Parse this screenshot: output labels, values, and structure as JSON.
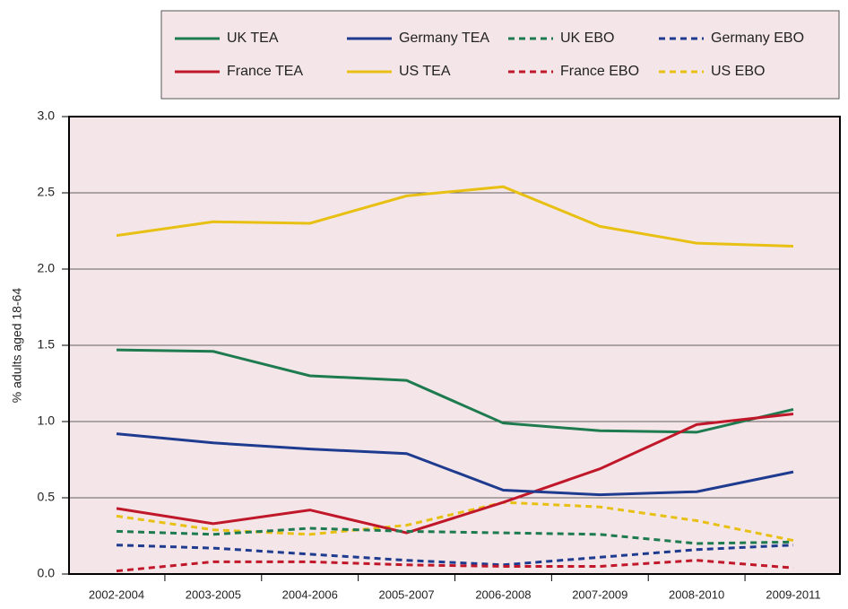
{
  "chart_data": {
    "type": "line",
    "y_label": "% adults aged 18-64",
    "categories": [
      "2002-2004",
      "2003-2005",
      "2004-2006",
      "2005-2007",
      "2006-2008",
      "2007-2009",
      "2008-2010",
      "2009-2011"
    ],
    "ylim": [
      0,
      3
    ],
    "yticks": [
      {
        "value": 0,
        "label": "0.0"
      },
      0.5,
      {
        "value": 1,
        "label": "1.0"
      },
      1.5,
      {
        "value": 2,
        "label": "2.0"
      },
      2.5,
      {
        "value": 3,
        "label": "3.0"
      }
    ],
    "grid": true,
    "legend": "top",
    "series": [
      {
        "name": "UK TEA",
        "color": "#1e7a4f",
        "style": "solid",
        "values": [
          1.47,
          1.46,
          1.3,
          1.27,
          0.99,
          0.94,
          0.93,
          1.08
        ]
      },
      {
        "name": "Germany TEA",
        "color": "#1f3b8f",
        "style": "solid",
        "values": [
          0.92,
          0.86,
          0.82,
          0.79,
          0.55,
          0.52,
          0.54,
          0.67
        ]
      },
      {
        "name": "UK EBO",
        "color": "#1e7a4f",
        "style": "dashed",
        "values": [
          0.28,
          0.26,
          0.3,
          0.28,
          0.27,
          0.26,
          0.2,
          0.21
        ]
      },
      {
        "name": "Germany EBO",
        "color": "#1f3b8f",
        "style": "dashed",
        "values": [
          0.19,
          0.17,
          0.13,
          0.09,
          0.06,
          0.11,
          0.16,
          0.19
        ]
      },
      {
        "name": "France TEA",
        "color": "#c0182a",
        "style": "solid",
        "values": [
          0.43,
          0.33,
          0.42,
          0.27,
          0.47,
          0.69,
          0.98,
          1.05
        ]
      },
      {
        "name": "US TEA",
        "color": "#e8c014",
        "style": "solid",
        "values": [
          2.22,
          2.31,
          2.3,
          2.48,
          2.54,
          2.28,
          2.17,
          2.15
        ]
      },
      {
        "name": "France EBO",
        "color": "#c0182a",
        "style": "dashed",
        "values": [
          0.02,
          0.08,
          0.08,
          0.06,
          0.05,
          0.05,
          0.09,
          0.04
        ]
      },
      {
        "name": "US EBO",
        "color": "#e8c014",
        "style": "dashed",
        "values": [
          0.38,
          0.29,
          0.26,
          0.32,
          0.47,
          0.44,
          0.35,
          0.22
        ]
      }
    ]
  }
}
